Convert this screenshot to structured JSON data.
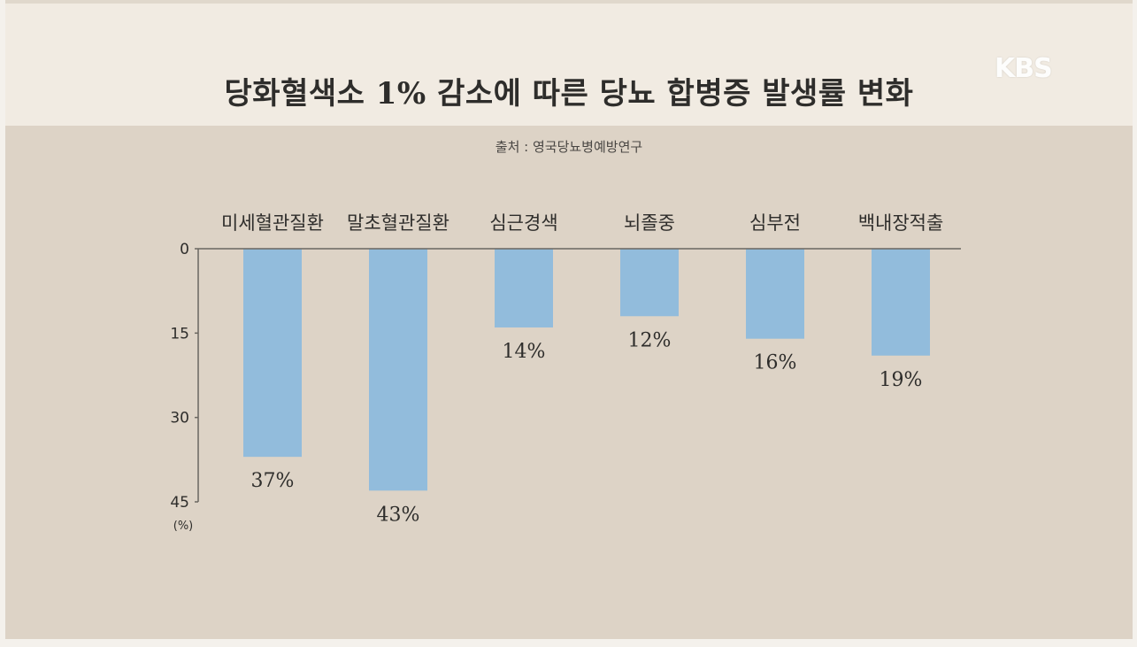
{
  "header": {
    "title": "당화혈색소 1% 감소에 따른 당뇨 합병증 발생률 변화",
    "source": "출처 : 영국당뇨병예방연구",
    "logo": "KBS"
  },
  "colors": {
    "bar": "#92bcdc",
    "axis": "#6a6660"
  },
  "chart_data": {
    "type": "bar",
    "orientation": "vertical-inverted",
    "title": "당화혈색소 1% 감소에 따른 당뇨 합병증 발생률 변화",
    "subtitle": "출처 : 영국당뇨병예방연구",
    "categories": [
      "미세혈관질환",
      "말초혈관질환",
      "심근경색",
      "뇌졸중",
      "심부전",
      "백내장적출"
    ],
    "values": [
      37,
      43,
      14,
      12,
      16,
      19
    ],
    "value_labels": [
      "37%",
      "43%",
      "14%",
      "12%",
      "16%",
      "19%"
    ],
    "y_ticks": [
      0,
      15,
      30,
      45
    ],
    "y_tick_labels": [
      "0",
      "15",
      "30",
      "45"
    ],
    "ylabel": "(%)",
    "ylim": [
      0,
      45
    ],
    "grid": false,
    "legend": "none"
  }
}
